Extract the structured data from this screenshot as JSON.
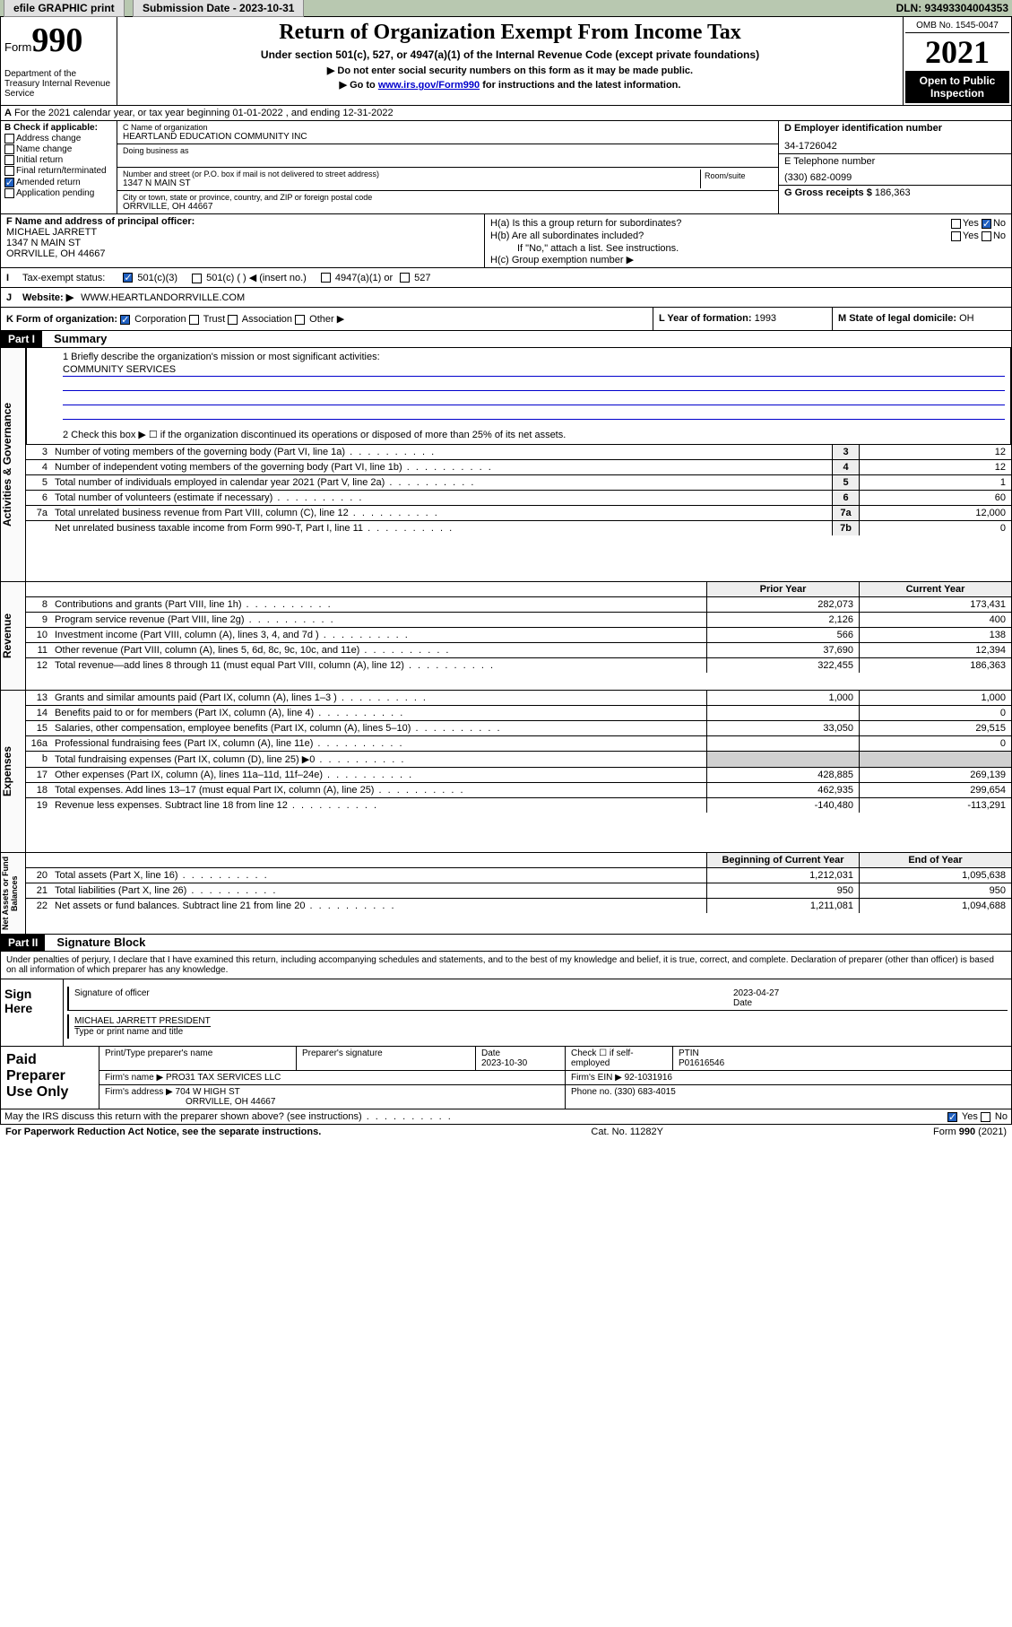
{
  "topbar": {
    "efile": "efile GRAPHIC print",
    "submission_label": "Submission Date - 2023-10-31",
    "dln": "DLN: 93493304004353"
  },
  "header": {
    "form_prefix": "Form",
    "form_number": "990",
    "dept": "Department of the Treasury Internal Revenue Service",
    "title": "Return of Organization Exempt From Income Tax",
    "subtitle": "Under section 501(c), 527, or 4947(a)(1) of the Internal Revenue Code (except private foundations)",
    "note1": "▶ Do not enter social security numbers on this form as it may be made public.",
    "note2_pre": "▶ Go to ",
    "note2_link": "www.irs.gov/Form990",
    "note2_post": " for instructions and the latest information.",
    "omb": "OMB No. 1545-0047",
    "year": "2021",
    "open_pub": "Open to Public Inspection"
  },
  "sectionA": "For the 2021 calendar year, or tax year beginning 01-01-2022  , and ending 12-31-2022",
  "B": {
    "label": "B Check if applicable:",
    "opts": [
      "Address change",
      "Name change",
      "Initial return",
      "Final return/terminated",
      "Amended return",
      "Application pending"
    ],
    "checked_idx": 4
  },
  "C": {
    "name_lbl": "C Name of organization",
    "name": "HEARTLAND EDUCATION COMMUNITY INC",
    "dba_lbl": "Doing business as",
    "addr_lbl": "Number and street (or P.O. box if mail is not delivered to street address)",
    "room_lbl": "Room/suite",
    "addr": "1347 N MAIN ST",
    "city_lbl": "City or town, state or province, country, and ZIP or foreign postal code",
    "city": "ORRVILLE, OH  44667"
  },
  "D": {
    "ein_lbl": "D Employer identification number",
    "ein": "34-1726042",
    "phone_lbl": "E Telephone number",
    "phone": "(330) 682-0099",
    "gross_lbl": "G Gross receipts $",
    "gross": "186,363"
  },
  "F": {
    "lbl": "F Name and address of principal officer:",
    "name": "MICHAEL JARRETT",
    "addr1": "1347 N MAIN ST",
    "addr2": "ORRVILLE, OH  44667"
  },
  "H": {
    "a": "H(a)  Is this a group return for subordinates?",
    "b": "H(b)  Are all subordinates included?",
    "b_note": "If \"No,\" attach a list. See instructions.",
    "c": "H(c)  Group exemption number ▶",
    "a_no": true
  },
  "I": {
    "lbl": "Tax-exempt status:",
    "opts": [
      "501(c)(3)",
      "501(c) ( ) ◀ (insert no.)",
      "4947(a)(1) or",
      "527"
    ],
    "checked": 0
  },
  "J": {
    "lbl": "Website: ▶",
    "val": "WWW.HEARTLANDORRVILLE.COM"
  },
  "K": {
    "lbl": "K Form of organization:",
    "opts": [
      "Corporation",
      "Trust",
      "Association",
      "Other ▶"
    ],
    "checked": 0
  },
  "L": {
    "lbl": "L Year of formation:",
    "val": "1993"
  },
  "M": {
    "lbl": "M State of legal domicile:",
    "val": "OH"
  },
  "part1": {
    "hdr": "Part I",
    "title": "Summary",
    "mission_lbl": "1  Briefly describe the organization's mission or most significant activities:",
    "mission": "COMMUNITY SERVICES",
    "check2": "2  Check this box ▶ ☐  if the organization discontinued its operations or disposed of more than 25% of its net assets."
  },
  "gov_rows": [
    {
      "n": "3",
      "t": "Number of voting members of the governing body (Part VI, line 1a)",
      "k": "3",
      "v": "12"
    },
    {
      "n": "4",
      "t": "Number of independent voting members of the governing body (Part VI, line 1b)",
      "k": "4",
      "v": "12"
    },
    {
      "n": "5",
      "t": "Total number of individuals employed in calendar year 2021 (Part V, line 2a)",
      "k": "5",
      "v": "1"
    },
    {
      "n": "6",
      "t": "Total number of volunteers (estimate if necessary)",
      "k": "6",
      "v": "60"
    },
    {
      "n": "7a",
      "t": "Total unrelated business revenue from Part VIII, column (C), line 12",
      "k": "7a",
      "v": "12,000"
    },
    {
      "n": "",
      "t": "Net unrelated business taxable income from Form 990-T, Part I, line 11",
      "k": "7b",
      "v": "0"
    }
  ],
  "rev_hdr": {
    "prior": "Prior Year",
    "cur": "Current Year"
  },
  "rev_rows": [
    {
      "n": "8",
      "t": "Contributions and grants (Part VIII, line 1h)",
      "p": "282,073",
      "c": "173,431"
    },
    {
      "n": "9",
      "t": "Program service revenue (Part VIII, line 2g)",
      "p": "2,126",
      "c": "400"
    },
    {
      "n": "10",
      "t": "Investment income (Part VIII, column (A), lines 3, 4, and 7d )",
      "p": "566",
      "c": "138"
    },
    {
      "n": "11",
      "t": "Other revenue (Part VIII, column (A), lines 5, 6d, 8c, 9c, 10c, and 11e)",
      "p": "37,690",
      "c": "12,394"
    },
    {
      "n": "12",
      "t": "Total revenue—add lines 8 through 11 (must equal Part VIII, column (A), line 12)",
      "p": "322,455",
      "c": "186,363"
    }
  ],
  "exp_rows": [
    {
      "n": "13",
      "t": "Grants and similar amounts paid (Part IX, column (A), lines 1–3 )",
      "p": "1,000",
      "c": "1,000"
    },
    {
      "n": "14",
      "t": "Benefits paid to or for members (Part IX, column (A), line 4)",
      "p": "",
      "c": "0"
    },
    {
      "n": "15",
      "t": "Salaries, other compensation, employee benefits (Part IX, column (A), lines 5–10)",
      "p": "33,050",
      "c": "29,515"
    },
    {
      "n": "16a",
      "t": "Professional fundraising fees (Part IX, column (A), line 11e)",
      "p": "",
      "c": "0"
    },
    {
      "n": "b",
      "t": "Total fundraising expenses (Part IX, column (D), line 25) ▶0",
      "p": "",
      "c": "",
      "shade": true
    },
    {
      "n": "17",
      "t": "Other expenses (Part IX, column (A), lines 11a–11d, 11f–24e)",
      "p": "428,885",
      "c": "269,139"
    },
    {
      "n": "18",
      "t": "Total expenses. Add lines 13–17 (must equal Part IX, column (A), line 25)",
      "p": "462,935",
      "c": "299,654"
    },
    {
      "n": "19",
      "t": "Revenue less expenses. Subtract line 18 from line 12",
      "p": "-140,480",
      "c": "-113,291"
    }
  ],
  "net_hdr": {
    "beg": "Beginning of Current Year",
    "end": "End of Year"
  },
  "net_rows": [
    {
      "n": "20",
      "t": "Total assets (Part X, line 16)",
      "p": "1,212,031",
      "c": "1,095,638"
    },
    {
      "n": "21",
      "t": "Total liabilities (Part X, line 26)",
      "p": "950",
      "c": "950"
    },
    {
      "n": "22",
      "t": "Net assets or fund balances. Subtract line 21 from line 20",
      "p": "1,211,081",
      "c": "1,094,688"
    }
  ],
  "side_labels": {
    "gov": "Activities & Governance",
    "rev": "Revenue",
    "exp": "Expenses",
    "net": "Net Assets or Fund Balances"
  },
  "part2": {
    "hdr": "Part II",
    "title": "Signature Block",
    "decl": "Under penalties of perjury, I declare that I have examined this return, including accompanying schedules and statements, and to the best of my knowledge and belief, it is true, correct, and complete. Declaration of preparer (other than officer) is based on all information of which preparer has any knowledge."
  },
  "sign": {
    "side": "Sign Here",
    "sig_lbl": "Signature of officer",
    "date_lbl": "Date",
    "date": "2023-04-27",
    "name_lbl": "Type or print name and title",
    "name": "MICHAEL JARRETT PRESIDENT"
  },
  "paid": {
    "side": "Paid Preparer Use Only",
    "r1": {
      "a": "Print/Type preparer's name",
      "b": "Preparer's signature",
      "c": "Date",
      "c_v": "2023-10-30",
      "d": "Check ☐ if self-employed",
      "e": "PTIN",
      "e_v": "P01616546"
    },
    "r2": {
      "a": "Firm's name    ▶",
      "a_v": "PRO31 TAX SERVICES LLC",
      "b": "Firm's EIN ▶",
      "b_v": "92-1031916"
    },
    "r3": {
      "a": "Firm's address ▶",
      "a_v": "704 W HIGH ST",
      "a2": "ORRVILLE, OH  44667",
      "b": "Phone no.",
      "b_v": "(330) 683-4015"
    }
  },
  "may": {
    "q": "May the IRS discuss this return with the preparer shown above? (see instructions)",
    "yes": true
  },
  "footer": {
    "left": "For Paperwork Reduction Act Notice, see the separate instructions.",
    "mid": "Cat. No. 11282Y",
    "right": "Form 990 (2021)"
  }
}
